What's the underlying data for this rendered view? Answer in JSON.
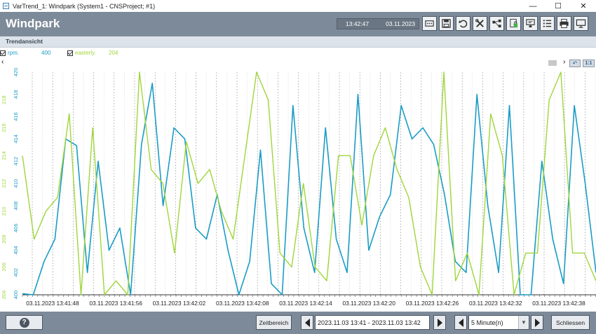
{
  "window": {
    "title": "VarTrend_1: Windpark (System1 - CNSProject; #1)",
    "minimize_glyph": "—",
    "maximize_glyph": "☐",
    "close_glyph": "✕"
  },
  "header": {
    "title": "Windpark",
    "time": "13:42:47",
    "date": "03.11.2023",
    "toolbar_icons": [
      "dots-icon",
      "save-icon",
      "undo-icon",
      "tools-icon",
      "share-icon",
      "lock-file-icon",
      "screen-icon",
      "list-icon",
      "print-icon",
      "monitor-icon"
    ]
  },
  "subheader": {
    "title": "Trendansicht"
  },
  "legend": [
    {
      "name": "rpm.",
      "value": "400",
      "color": "#1a9cc6",
      "checked": true
    },
    {
      "name": "easterly.",
      "value": "204",
      "color": "#9fd63a",
      "checked": true
    }
  ],
  "scroll": {
    "left_arrow": "‹",
    "right_arrow": "›",
    "reset_glyph": "↶",
    "scale_label": "1:1"
  },
  "chart_data": {
    "type": "line",
    "x_tick_labels": [
      "03.11.2023 13:41:48",
      "03.11.2023 13:41:56",
      "03.11.2023 13:42:02",
      "03.11.2023 13:42:08",
      "03.11.2023 13:42:14",
      "03.11.2023 13:42:20",
      "03.11.2023 13:42:26",
      "03.11.2023 13:42:32",
      "03.11.2023 13:42:38"
    ],
    "y1": {
      "name": "rpm.",
      "range": [
        400,
        420
      ],
      "ticks": [
        "400",
        "402",
        "404",
        "406",
        "408",
        "410",
        "412",
        "414",
        "416",
        "418",
        "420"
      ],
      "color": "#1a9cc6"
    },
    "y2": {
      "name": "easterly.",
      "range": [
        204,
        220
      ],
      "ticks": [
        "204",
        "206",
        "208",
        "210",
        "212",
        "214",
        "216",
        "218"
      ],
      "color": "#9fd63a"
    },
    "series": [
      {
        "name": "rpm.",
        "axis": "y1",
        "color": "#1a9cc6",
        "values": [
          400.1,
          399,
          403,
          405,
          414,
          413.4,
          402,
          412,
          404,
          406,
          399.5,
          413.5,
          419,
          408,
          415,
          414,
          406,
          405,
          409,
          404,
          399.5,
          403,
          413,
          401,
          399.5,
          417,
          406,
          402,
          415,
          405,
          402,
          418,
          404,
          407,
          409,
          417,
          414,
          415,
          413.5,
          409,
          403,
          402,
          418,
          408,
          402,
          417,
          400,
          399.5,
          412,
          405,
          401,
          417,
          410,
          402
        ]
      },
      {
        "name": "easterly.",
        "axis": "y2",
        "color": "#9fd63a",
        "values": [
          214,
          208,
          210,
          211,
          217,
          202,
          216,
          202,
          205,
          202,
          220,
          213,
          212,
          207,
          215,
          212,
          213,
          210,
          208,
          214,
          220,
          218,
          207,
          206,
          212,
          206,
          205,
          214,
          214,
          209,
          214,
          216,
          213,
          211,
          206,
          202,
          220,
          205,
          207,
          202,
          217,
          214,
          200,
          207,
          207,
          218,
          220,
          207,
          207,
          205
        ]
      }
    ],
    "grid": true,
    "legend_position": "top-left"
  },
  "footer": {
    "help_glyph": "?",
    "zeitbereich": "Zeitbereich",
    "range": "2023.11.03 13:41 - 2023.11.03 13:42",
    "interval": "5 Minute(n)",
    "dropdown_glyph": "▼",
    "close_label": "Schliessen"
  }
}
